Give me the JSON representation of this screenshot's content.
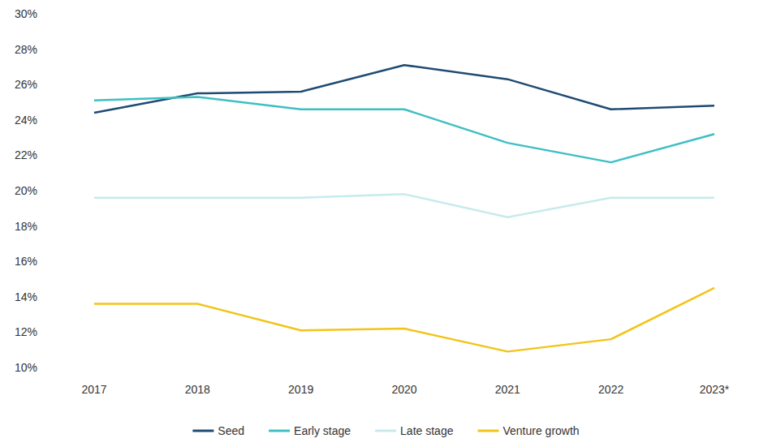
{
  "chart_data": {
    "type": "line",
    "categories": [
      "2017",
      "2018",
      "2019",
      "2020",
      "2021",
      "2022",
      "2023*"
    ],
    "series": [
      {
        "name": "Seed",
        "color": "#1f4b73",
        "values": [
          24.4,
          25.5,
          25.6,
          27.1,
          26.3,
          24.6,
          24.8
        ]
      },
      {
        "name": "Early stage",
        "color": "#3dbfc3",
        "values": [
          25.1,
          25.3,
          24.6,
          24.6,
          22.7,
          21.6,
          23.2
        ]
      },
      {
        "name": "Late stage",
        "color": "#c6ebed",
        "values": [
          19.6,
          19.6,
          19.6,
          19.8,
          18.5,
          19.6,
          19.6
        ]
      },
      {
        "name": "Venture growth",
        "color": "#f2c418",
        "values": [
          13.6,
          13.6,
          12.1,
          12.2,
          10.9,
          11.6,
          14.5
        ]
      }
    ],
    "ylim": [
      10,
      30
    ],
    "yticks": [
      {
        "value": 10,
        "label": "10%"
      },
      {
        "value": 12,
        "label": "12%"
      },
      {
        "value": 14,
        "label": "14%"
      },
      {
        "value": 16,
        "label": "16%"
      },
      {
        "value": 18,
        "label": "18%"
      },
      {
        "value": 20,
        "label": "20%"
      },
      {
        "value": 22,
        "label": "22%"
      },
      {
        "value": 24,
        "label": "24%"
      },
      {
        "value": 26,
        "label": "26%"
      },
      {
        "value": 28,
        "label": "28%"
      },
      {
        "value": 30,
        "label": "30%"
      }
    ],
    "grid": false,
    "legend": "bottom"
  }
}
